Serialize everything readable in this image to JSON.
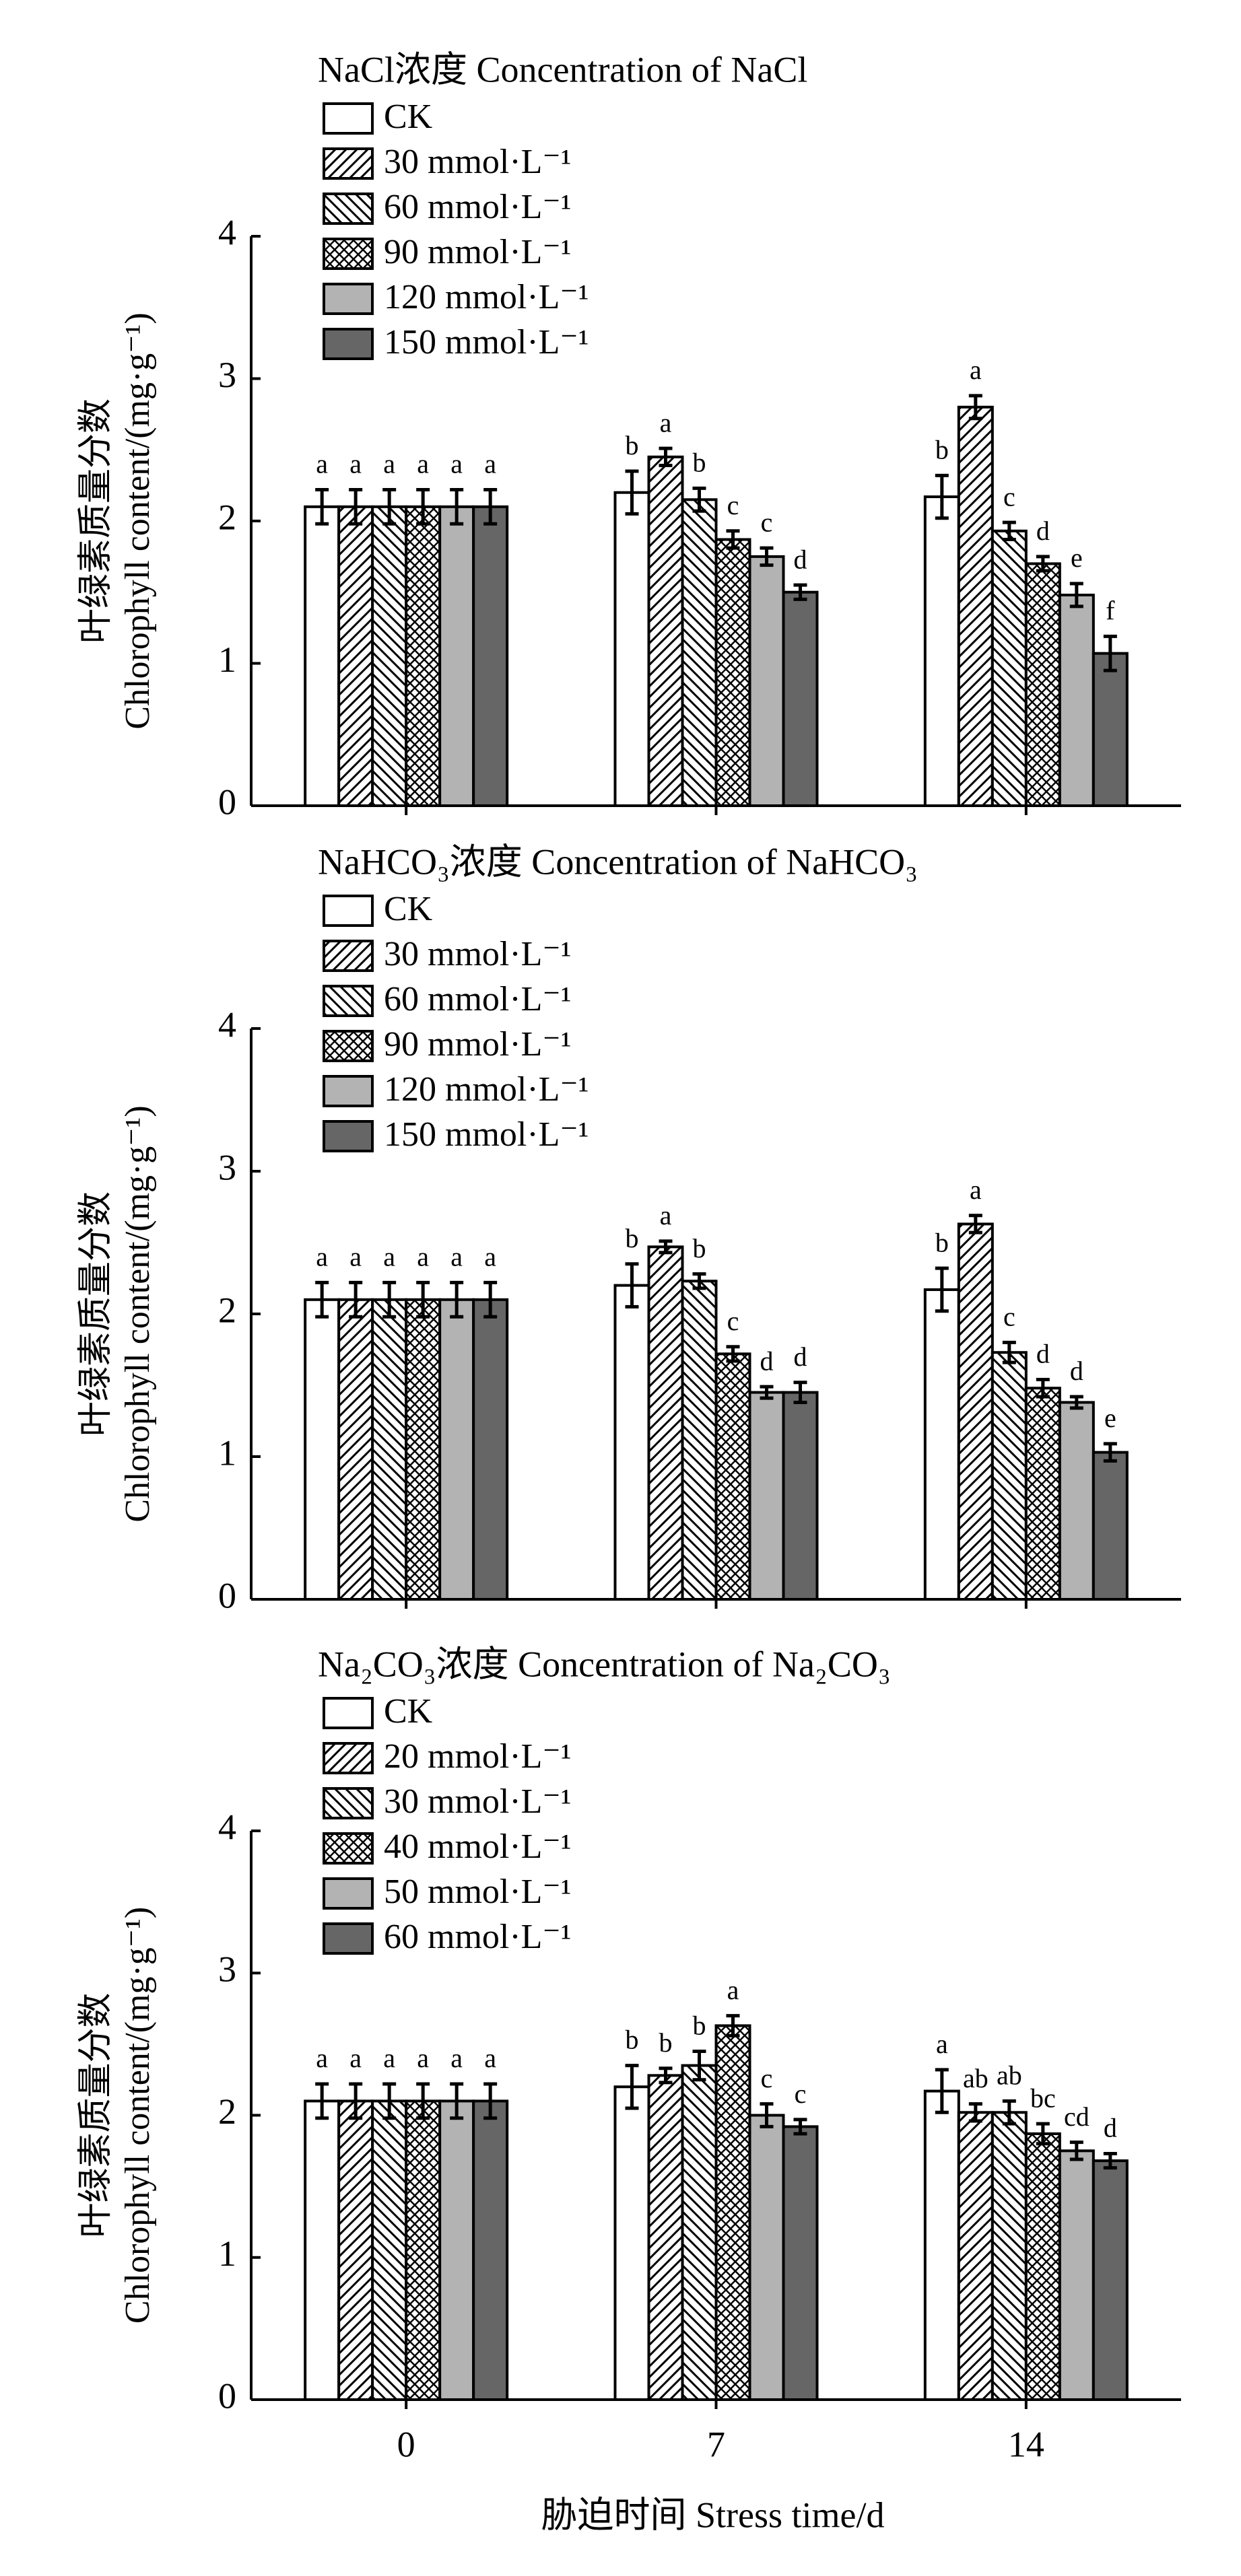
{
  "chart_data": [
    {
      "type": "bar",
      "title": "NaCl浓度 Concentration of NaCl",
      "ylabel": [
        "叶绿素质量分数",
        "Chlorophyll content/(mg·g⁻¹)"
      ],
      "categories": [
        "0",
        "7",
        "14"
      ],
      "ylim": [
        0,
        4
      ],
      "yticks": [
        0,
        1,
        2,
        3,
        4
      ],
      "series": [
        {
          "name": "CK",
          "color": "#ffffff",
          "pattern": "none",
          "values": [
            2.1,
            2.2,
            2.17
          ],
          "errors": [
            0.12,
            0.15,
            0.15
          ],
          "letters": [
            "a",
            "b",
            "b"
          ]
        },
        {
          "name": "30 mmol·L⁻¹",
          "color": "#ffffff",
          "pattern": "forward",
          "values": [
            2.1,
            2.45,
            2.8
          ],
          "errors": [
            0.12,
            0.06,
            0.08
          ],
          "letters": [
            "a",
            "a",
            "a"
          ]
        },
        {
          "name": "60 mmol·L⁻¹",
          "color": "#ffffff",
          "pattern": "backward",
          "values": [
            2.1,
            2.15,
            1.93
          ],
          "errors": [
            0.12,
            0.08,
            0.06
          ],
          "letters": [
            "a",
            "b",
            "c"
          ]
        },
        {
          "name": "90 mmol·L⁻¹",
          "color": "#ffffff",
          "pattern": "cross",
          "values": [
            2.1,
            1.87,
            1.7
          ],
          "errors": [
            0.12,
            0.06,
            0.05
          ],
          "letters": [
            "a",
            "c",
            "d"
          ]
        },
        {
          "name": "120 mmol·L⁻¹",
          "color": "#b3b3b3",
          "pattern": "none",
          "values": [
            2.1,
            1.75,
            1.48
          ],
          "errors": [
            0.12,
            0.06,
            0.08
          ],
          "letters": [
            "a",
            "c",
            "e"
          ]
        },
        {
          "name": "150 mmol·L⁻¹",
          "color": "#666666",
          "pattern": "none",
          "values": [
            2.1,
            1.5,
            1.07
          ],
          "errors": [
            0.12,
            0.05,
            0.12
          ],
          "letters": [
            "a",
            "d",
            "f"
          ]
        }
      ]
    },
    {
      "type": "bar",
      "title": "NaHCO₃浓度 Concentration of NaHCO₃",
      "ylabel": [
        "叶绿素质量分数",
        "Chlorophyll content/(mg·g⁻¹)"
      ],
      "categories": [
        "0",
        "7",
        "14"
      ],
      "ylim": [
        0,
        4
      ],
      "yticks": [
        0,
        1,
        2,
        3,
        4
      ],
      "series": [
        {
          "name": "CK",
          "color": "#ffffff",
          "pattern": "none",
          "values": [
            2.1,
            2.2,
            2.17
          ],
          "errors": [
            0.12,
            0.15,
            0.15
          ],
          "letters": [
            "a",
            "b",
            "b"
          ]
        },
        {
          "name": "30 mmol·L⁻¹",
          "color": "#ffffff",
          "pattern": "forward",
          "values": [
            2.1,
            2.47,
            2.63
          ],
          "errors": [
            0.12,
            0.04,
            0.06
          ],
          "letters": [
            "a",
            "a",
            "a"
          ]
        },
        {
          "name": "60 mmol·L⁻¹",
          "color": "#ffffff",
          "pattern": "backward",
          "values": [
            2.1,
            2.23,
            1.73
          ],
          "errors": [
            0.12,
            0.05,
            0.07
          ],
          "letters": [
            "a",
            "b",
            "c"
          ]
        },
        {
          "name": "90 mmol·L⁻¹",
          "color": "#ffffff",
          "pattern": "cross",
          "values": [
            2.1,
            1.72,
            1.48
          ],
          "errors": [
            0.12,
            0.05,
            0.06
          ],
          "letters": [
            "a",
            "c",
            "d"
          ]
        },
        {
          "name": "120 mmol·L⁻¹",
          "color": "#b3b3b3",
          "pattern": "none",
          "values": [
            2.1,
            1.45,
            1.38
          ],
          "errors": [
            0.12,
            0.04,
            0.04
          ],
          "letters": [
            "a",
            "d",
            "d"
          ]
        },
        {
          "name": "150 mmol·L⁻¹",
          "color": "#666666",
          "pattern": "none",
          "values": [
            2.1,
            1.45,
            1.03
          ],
          "errors": [
            0.12,
            0.07,
            0.06
          ],
          "letters": [
            "a",
            "d",
            "e"
          ]
        }
      ]
    },
    {
      "type": "bar",
      "title": "Na₂CO₃浓度 Concentration of Na₂CO₃",
      "ylabel": [
        "叶绿素质量分数",
        "Chlorophyll content/(mg·g⁻¹)"
      ],
      "xlabel": "胁迫时间 Stress time/d",
      "categories": [
        "0",
        "7",
        "14"
      ],
      "ylim": [
        0,
        4
      ],
      "yticks": [
        0,
        1,
        2,
        3,
        4
      ],
      "series": [
        {
          "name": "CK",
          "color": "#ffffff",
          "pattern": "none",
          "values": [
            2.1,
            2.2,
            2.17
          ],
          "errors": [
            0.12,
            0.15,
            0.15
          ],
          "letters": [
            "a",
            "b",
            "a"
          ]
        },
        {
          "name": "20 mmol·L⁻¹",
          "color": "#ffffff",
          "pattern": "forward",
          "values": [
            2.1,
            2.28,
            2.02
          ],
          "errors": [
            0.12,
            0.05,
            0.06
          ],
          "letters": [
            "a",
            "b",
            "ab"
          ]
        },
        {
          "name": "30 mmol·L⁻¹",
          "color": "#ffffff",
          "pattern": "backward",
          "values": [
            2.1,
            2.35,
            2.02
          ],
          "errors": [
            0.12,
            0.1,
            0.08
          ],
          "letters": [
            "a",
            "b",
            "ab"
          ]
        },
        {
          "name": "40 mmol·L⁻¹",
          "color": "#ffffff",
          "pattern": "cross",
          "values": [
            2.1,
            2.63,
            1.87
          ],
          "errors": [
            0.12,
            0.07,
            0.07
          ],
          "letters": [
            "a",
            "a",
            "bc"
          ]
        },
        {
          "name": "50 mmol·L⁻¹",
          "color": "#b3b3b3",
          "pattern": "none",
          "values": [
            2.1,
            2.0,
            1.75
          ],
          "errors": [
            0.12,
            0.08,
            0.06
          ],
          "letters": [
            "a",
            "c",
            "cd"
          ]
        },
        {
          "name": "60 mmol·L⁻¹",
          "color": "#666666",
          "pattern": "none",
          "values": [
            2.1,
            1.92,
            1.68
          ],
          "errors": [
            0.12,
            0.05,
            0.05
          ],
          "letters": [
            "a",
            "c",
            "d"
          ]
        }
      ]
    }
  ]
}
